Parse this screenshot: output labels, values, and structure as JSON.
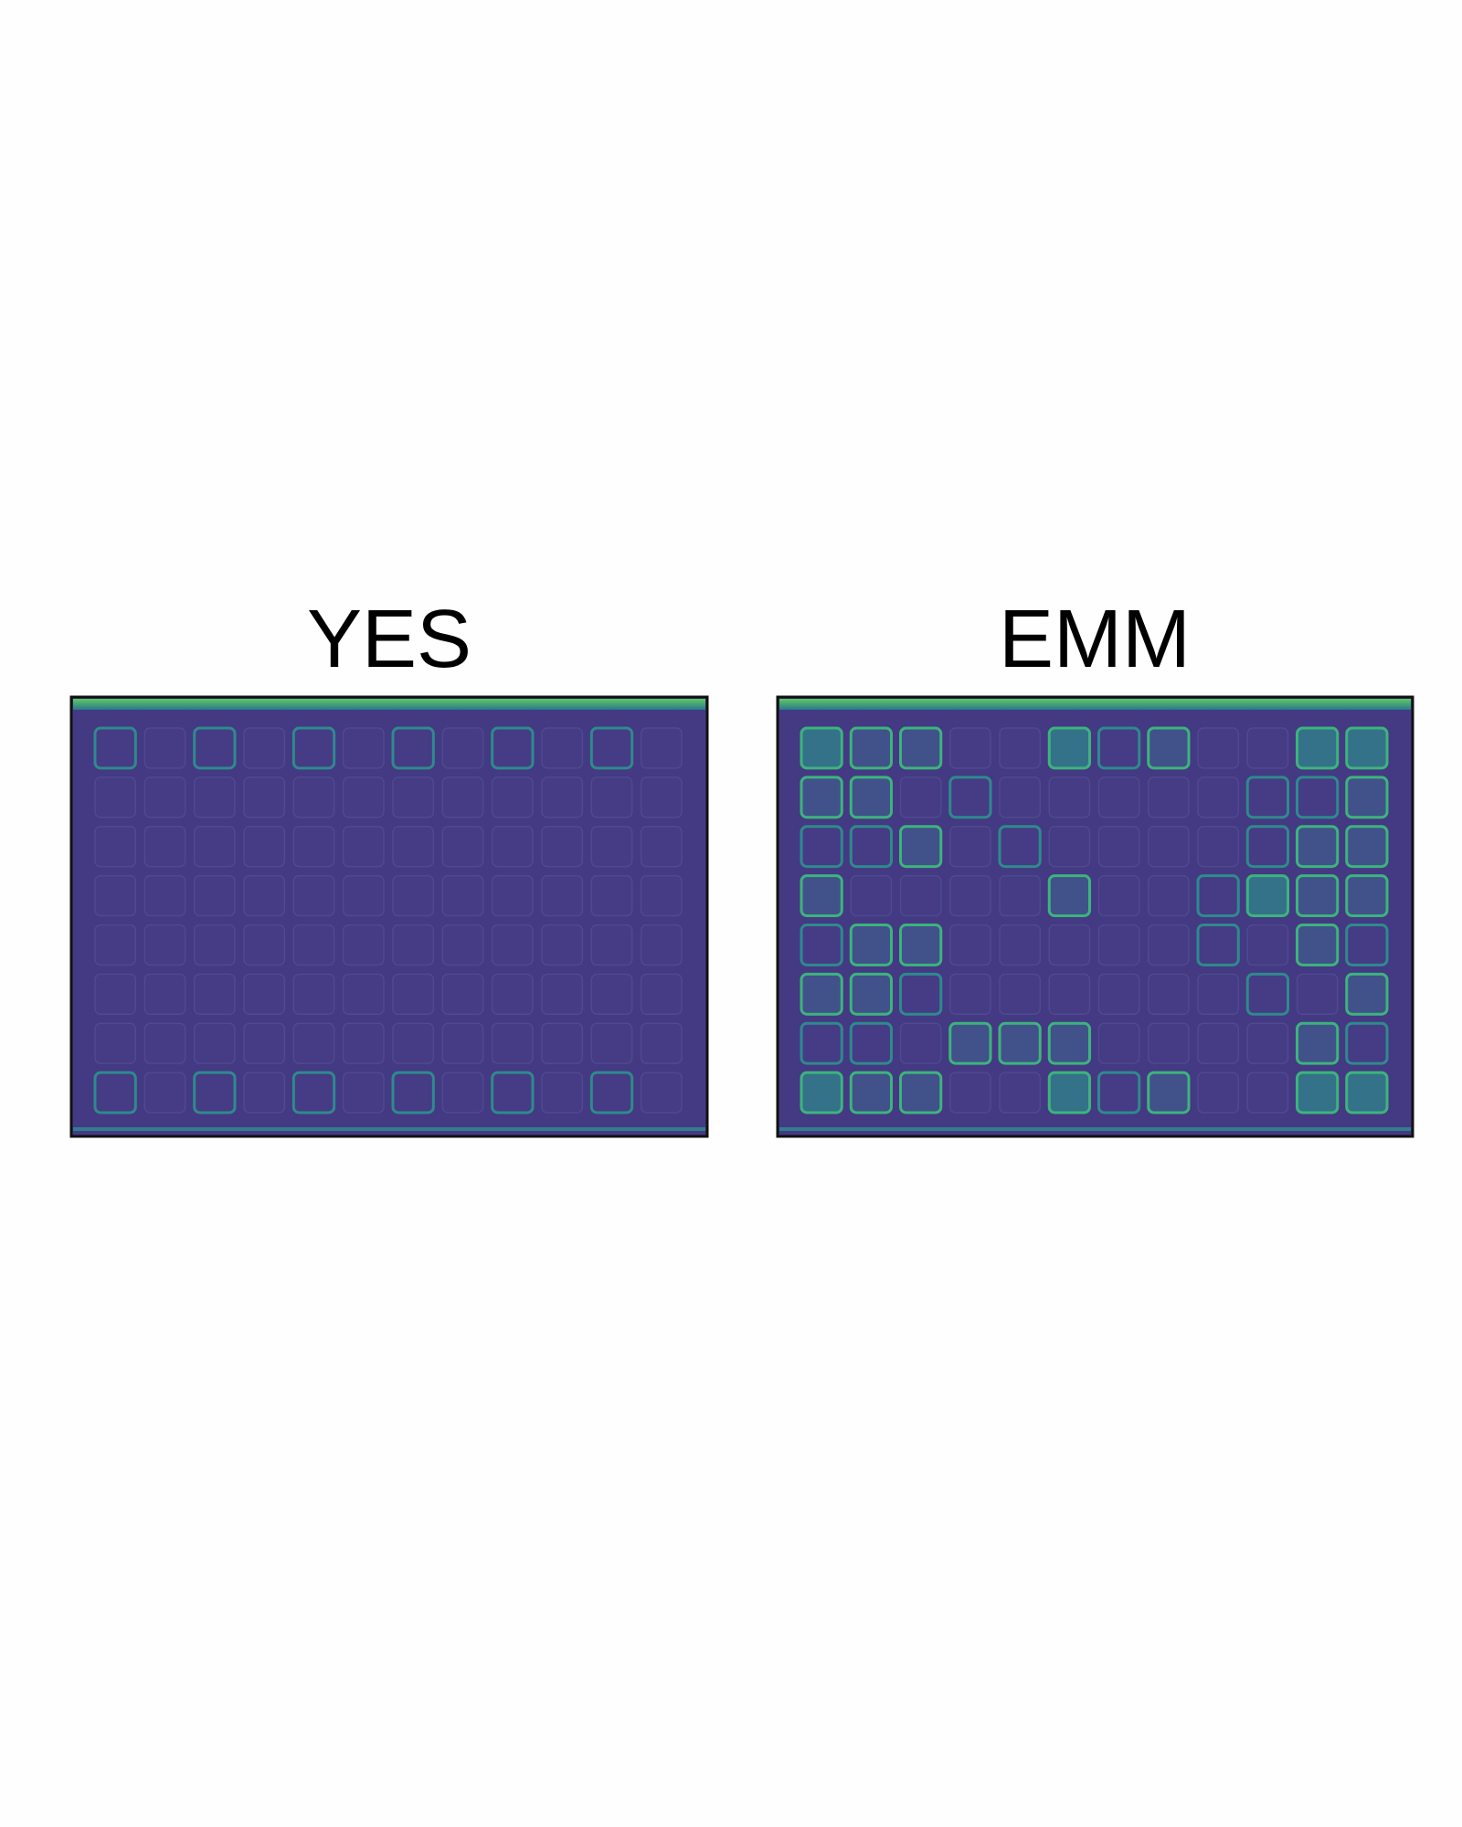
{
  "panels": [
    {
      "title": "YES"
    },
    {
      "title": "EMM"
    }
  ]
}
